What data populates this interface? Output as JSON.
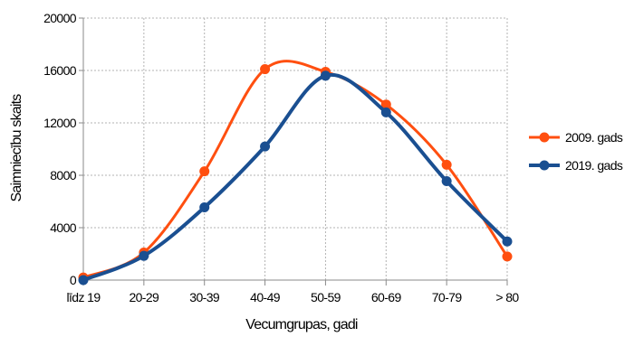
{
  "chart_data": {
    "type": "line",
    "smooth": true,
    "categories": [
      "līdz 19",
      "20-29",
      "30-39",
      "40-49",
      "50-59",
      "60-69",
      "70-79",
      "> 80"
    ],
    "series": [
      {
        "name": "2009. gads",
        "color": "#ff4f10",
        "values": [
          200,
          2100,
          8300,
          16100,
          15900,
          13400,
          8800,
          1800
        ]
      },
      {
        "name": "2019. gads",
        "color": "#1a4f91",
        "values": [
          0,
          1850,
          5550,
          10200,
          15600,
          12800,
          7550,
          2950
        ]
      }
    ],
    "xlabel": "Vecumgrupas, gadi",
    "ylabel": "Saimniecību skaits",
    "ylim": [
      0,
      20000
    ],
    "yticks": [
      0,
      4000,
      8000,
      12000,
      16000,
      20000
    ],
    "grid": true,
    "legend_position": "right"
  }
}
